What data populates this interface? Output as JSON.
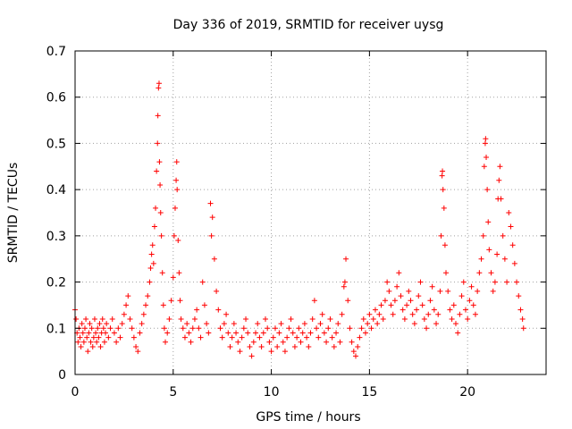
{
  "chart_data": {
    "type": "scatter",
    "title": "Day 336 of 2019, SRMTID for receiver uysg",
    "xlabel": "GPS time / hours",
    "ylabel": "SRMTID / TECUs",
    "xlim": [
      0,
      24
    ],
    "ylim": [
      0,
      0.7
    ],
    "grid": true,
    "marker": "+",
    "marker_color": "#ff0000",
    "x_ticks": [
      0,
      5,
      10,
      15,
      20
    ],
    "x_tick_labels": [
      "0",
      "5",
      "10",
      "15",
      "20"
    ],
    "y_ticks": [
      0,
      0.1,
      0.2,
      0.3,
      0.4,
      0.5,
      0.6,
      0.7
    ],
    "y_tick_labels": [
      "0",
      "0.1",
      "0.2",
      "0.3",
      "0.4",
      "0.5",
      "0.6",
      "0.7"
    ],
    "series": [
      {
        "name": "SRMTID",
        "points": [
          [
            0.0,
            0.14
          ],
          [
            0.05,
            0.12
          ],
          [
            0.1,
            0.09
          ],
          [
            0.15,
            0.07
          ],
          [
            0.2,
            0.1
          ],
          [
            0.25,
            0.08
          ],
          [
            0.3,
            0.06
          ],
          [
            0.35,
            0.11
          ],
          [
            0.4,
            0.09
          ],
          [
            0.45,
            0.07
          ],
          [
            0.5,
            0.1
          ],
          [
            0.55,
            0.12
          ],
          [
            0.6,
            0.08
          ],
          [
            0.65,
            0.05
          ],
          [
            0.7,
            0.09
          ],
          [
            0.75,
            0.11
          ],
          [
            0.8,
            0.07
          ],
          [
            0.85,
            0.1
          ],
          [
            0.9,
            0.06
          ],
          [
            0.95,
            0.08
          ],
          [
            1.0,
            0.12
          ],
          [
            1.05,
            0.09
          ],
          [
            1.1,
            0.07
          ],
          [
            1.15,
            0.1
          ],
          [
            1.2,
            0.08
          ],
          [
            1.25,
            0.11
          ],
          [
            1.3,
            0.06
          ],
          [
            1.35,
            0.09
          ],
          [
            1.4,
            0.12
          ],
          [
            1.45,
            0.1
          ],
          [
            1.5,
            0.07
          ],
          [
            1.55,
            0.09
          ],
          [
            1.6,
            0.11
          ],
          [
            1.7,
            0.08
          ],
          [
            1.8,
            0.1
          ],
          [
            1.9,
            0.12
          ],
          [
            2.0,
            0.09
          ],
          [
            2.1,
            0.07
          ],
          [
            2.2,
            0.1
          ],
          [
            2.3,
            0.08
          ],
          [
            2.4,
            0.11
          ],
          [
            2.5,
            0.13
          ],
          [
            2.6,
            0.15
          ],
          [
            2.7,
            0.17
          ],
          [
            2.8,
            0.12
          ],
          [
            2.9,
            0.1
          ],
          [
            3.0,
            0.08
          ],
          [
            3.1,
            0.06
          ],
          [
            3.2,
            0.05
          ],
          [
            3.3,
            0.09
          ],
          [
            3.4,
            0.11
          ],
          [
            3.5,
            0.13
          ],
          [
            3.6,
            0.15
          ],
          [
            3.7,
            0.17
          ],
          [
            3.8,
            0.2
          ],
          [
            3.85,
            0.23
          ],
          [
            3.9,
            0.26
          ],
          [
            3.95,
            0.28
          ],
          [
            4.0,
            0.24
          ],
          [
            4.05,
            0.32
          ],
          [
            4.1,
            0.36
          ],
          [
            4.15,
            0.44
          ],
          [
            4.2,
            0.5
          ],
          [
            4.22,
            0.56
          ],
          [
            4.25,
            0.62
          ],
          [
            4.28,
            0.63
          ],
          [
            4.3,
            0.46
          ],
          [
            4.33,
            0.41
          ],
          [
            4.36,
            0.35
          ],
          [
            4.4,
            0.3
          ],
          [
            4.45,
            0.22
          ],
          [
            4.5,
            0.15
          ],
          [
            4.55,
            0.1
          ],
          [
            4.6,
            0.07
          ],
          [
            4.7,
            0.09
          ],
          [
            4.8,
            0.12
          ],
          [
            4.9,
            0.16
          ],
          [
            5.0,
            0.21
          ],
          [
            5.05,
            0.3
          ],
          [
            5.1,
            0.36
          ],
          [
            5.15,
            0.42
          ],
          [
            5.18,
            0.46
          ],
          [
            5.2,
            0.4
          ],
          [
            5.25,
            0.29
          ],
          [
            5.3,
            0.22
          ],
          [
            5.35,
            0.16
          ],
          [
            5.4,
            0.12
          ],
          [
            5.5,
            0.1
          ],
          [
            5.6,
            0.08
          ],
          [
            5.7,
            0.11
          ],
          [
            5.8,
            0.09
          ],
          [
            5.9,
            0.07
          ],
          [
            6.0,
            0.1
          ],
          [
            6.1,
            0.12
          ],
          [
            6.2,
            0.14
          ],
          [
            6.3,
            0.1
          ],
          [
            6.4,
            0.08
          ],
          [
            6.5,
            0.2
          ],
          [
            6.6,
            0.15
          ],
          [
            6.7,
            0.11
          ],
          [
            6.8,
            0.09
          ],
          [
            6.9,
            0.37
          ],
          [
            6.95,
            0.3
          ],
          [
            7.0,
            0.34
          ],
          [
            7.1,
            0.25
          ],
          [
            7.2,
            0.18
          ],
          [
            7.3,
            0.14
          ],
          [
            7.4,
            0.1
          ],
          [
            7.5,
            0.08
          ],
          [
            7.6,
            0.11
          ],
          [
            7.7,
            0.13
          ],
          [
            7.8,
            0.09
          ],
          [
            7.9,
            0.06
          ],
          [
            8.0,
            0.08
          ],
          [
            8.1,
            0.11
          ],
          [
            8.2,
            0.09
          ],
          [
            8.3,
            0.07
          ],
          [
            8.4,
            0.05
          ],
          [
            8.5,
            0.08
          ],
          [
            8.6,
            0.1
          ],
          [
            8.7,
            0.12
          ],
          [
            8.8,
            0.09
          ],
          [
            8.9,
            0.06
          ],
          [
            9.0,
            0.04
          ],
          [
            9.1,
            0.07
          ],
          [
            9.2,
            0.09
          ],
          [
            9.3,
            0.11
          ],
          [
            9.4,
            0.08
          ],
          [
            9.5,
            0.06
          ],
          [
            9.6,
            0.09
          ],
          [
            9.7,
            0.12
          ],
          [
            9.8,
            0.1
          ],
          [
            9.9,
            0.07
          ],
          [
            10.0,
            0.05
          ],
          [
            10.1,
            0.08
          ],
          [
            10.2,
            0.1
          ],
          [
            10.3,
            0.06
          ],
          [
            10.4,
            0.09
          ],
          [
            10.5,
            0.11
          ],
          [
            10.6,
            0.07
          ],
          [
            10.7,
            0.05
          ],
          [
            10.8,
            0.08
          ],
          [
            10.9,
            0.1
          ],
          [
            11.0,
            0.12
          ],
          [
            11.1,
            0.09
          ],
          [
            11.2,
            0.06
          ],
          [
            11.3,
            0.08
          ],
          [
            11.4,
            0.1
          ],
          [
            11.5,
            0.07
          ],
          [
            11.6,
            0.09
          ],
          [
            11.7,
            0.11
          ],
          [
            11.8,
            0.08
          ],
          [
            11.9,
            0.06
          ],
          [
            12.0,
            0.09
          ],
          [
            12.1,
            0.12
          ],
          [
            12.2,
            0.16
          ],
          [
            12.3,
            0.1
          ],
          [
            12.4,
            0.08
          ],
          [
            12.5,
            0.11
          ],
          [
            12.6,
            0.13
          ],
          [
            12.7,
            0.09
          ],
          [
            12.8,
            0.07
          ],
          [
            12.9,
            0.1
          ],
          [
            13.0,
            0.12
          ],
          [
            13.1,
            0.08
          ],
          [
            13.2,
            0.06
          ],
          [
            13.3,
            0.09
          ],
          [
            13.4,
            0.11
          ],
          [
            13.5,
            0.07
          ],
          [
            13.6,
            0.13
          ],
          [
            13.7,
            0.19
          ],
          [
            13.75,
            0.2
          ],
          [
            13.8,
            0.25
          ],
          [
            13.9,
            0.16
          ],
          [
            14.0,
            0.1
          ],
          [
            14.1,
            0.07
          ],
          [
            14.2,
            0.05
          ],
          [
            14.3,
            0.04
          ],
          [
            14.4,
            0.06
          ],
          [
            14.5,
            0.08
          ],
          [
            14.6,
            0.1
          ],
          [
            14.7,
            0.12
          ],
          [
            14.8,
            0.09
          ],
          [
            14.9,
            0.11
          ],
          [
            15.0,
            0.13
          ],
          [
            15.1,
            0.1
          ],
          [
            15.2,
            0.12
          ],
          [
            15.3,
            0.14
          ],
          [
            15.4,
            0.11
          ],
          [
            15.5,
            0.13
          ],
          [
            15.6,
            0.15
          ],
          [
            15.7,
            0.12
          ],
          [
            15.8,
            0.16
          ],
          [
            15.9,
            0.2
          ],
          [
            16.0,
            0.18
          ],
          [
            16.1,
            0.15
          ],
          [
            16.2,
            0.13
          ],
          [
            16.3,
            0.16
          ],
          [
            16.4,
            0.19
          ],
          [
            16.5,
            0.22
          ],
          [
            16.6,
            0.17
          ],
          [
            16.7,
            0.14
          ],
          [
            16.8,
            0.12
          ],
          [
            16.9,
            0.15
          ],
          [
            17.0,
            0.18
          ],
          [
            17.1,
            0.16
          ],
          [
            17.2,
            0.13
          ],
          [
            17.3,
            0.11
          ],
          [
            17.4,
            0.14
          ],
          [
            17.5,
            0.17
          ],
          [
            17.6,
            0.2
          ],
          [
            17.7,
            0.15
          ],
          [
            17.8,
            0.12
          ],
          [
            17.9,
            0.1
          ],
          [
            18.0,
            0.13
          ],
          [
            18.1,
            0.16
          ],
          [
            18.2,
            0.19
          ],
          [
            18.3,
            0.14
          ],
          [
            18.4,
            0.11
          ],
          [
            18.5,
            0.13
          ],
          [
            18.6,
            0.18
          ],
          [
            18.65,
            0.3
          ],
          [
            18.7,
            0.43
          ],
          [
            18.72,
            0.44
          ],
          [
            18.75,
            0.4
          ],
          [
            18.8,
            0.36
          ],
          [
            18.85,
            0.28
          ],
          [
            18.9,
            0.22
          ],
          [
            19.0,
            0.18
          ],
          [
            19.1,
            0.14
          ],
          [
            19.2,
            0.12
          ],
          [
            19.3,
            0.15
          ],
          [
            19.4,
            0.11
          ],
          [
            19.5,
            0.09
          ],
          [
            19.6,
            0.13
          ],
          [
            19.7,
            0.17
          ],
          [
            19.8,
            0.2
          ],
          [
            19.9,
            0.14
          ],
          [
            20.0,
            0.12
          ],
          [
            20.1,
            0.16
          ],
          [
            20.2,
            0.19
          ],
          [
            20.3,
            0.15
          ],
          [
            20.4,
            0.13
          ],
          [
            20.5,
            0.18
          ],
          [
            20.6,
            0.22
          ],
          [
            20.7,
            0.25
          ],
          [
            20.8,
            0.3
          ],
          [
            20.85,
            0.45
          ],
          [
            20.9,
            0.5
          ],
          [
            20.92,
            0.51
          ],
          [
            20.95,
            0.47
          ],
          [
            21.0,
            0.4
          ],
          [
            21.05,
            0.33
          ],
          [
            21.1,
            0.27
          ],
          [
            21.2,
            0.22
          ],
          [
            21.3,
            0.18
          ],
          [
            21.4,
            0.2
          ],
          [
            21.5,
            0.26
          ],
          [
            21.55,
            0.38
          ],
          [
            21.6,
            0.42
          ],
          [
            21.65,
            0.45
          ],
          [
            21.7,
            0.38
          ],
          [
            21.8,
            0.3
          ],
          [
            21.9,
            0.25
          ],
          [
            22.0,
            0.2
          ],
          [
            22.1,
            0.35
          ],
          [
            22.2,
            0.32
          ],
          [
            22.3,
            0.28
          ],
          [
            22.4,
            0.24
          ],
          [
            22.5,
            0.2
          ],
          [
            22.6,
            0.17
          ],
          [
            22.7,
            0.14
          ],
          [
            22.8,
            0.12
          ],
          [
            22.85,
            0.1
          ]
        ]
      }
    ]
  }
}
